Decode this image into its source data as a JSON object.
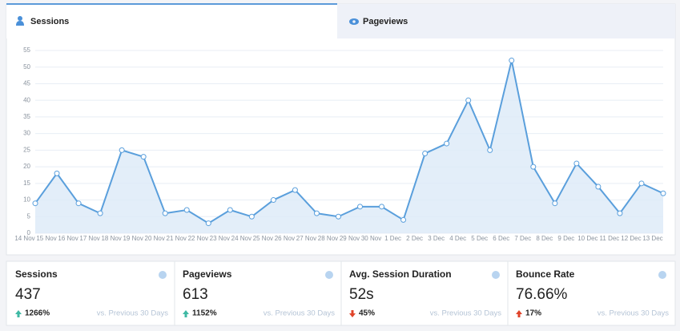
{
  "tabs": [
    "Sessions",
    "Pageviews"
  ],
  "chart_data": {
    "type": "line",
    "categories": [
      "14 Nov",
      "15 Nov",
      "16 Nov",
      "17 Nov",
      "18 Nov",
      "19 Nov",
      "20 Nov",
      "21 Nov",
      "22 Nov",
      "23 Nov",
      "24 Nov",
      "25 Nov",
      "26 Nov",
      "27 Nov",
      "28 Nov",
      "29 Nov",
      "30 Nov",
      "1 Dec",
      "2 Dec",
      "3 Dec",
      "4 Dec",
      "5 Dec",
      "6 Dec",
      "7 Dec",
      "8 Dec",
      "9 Dec",
      "10 Dec",
      "11 Dec",
      "12 Dec",
      "13 Dec"
    ],
    "values": [
      9,
      18,
      9,
      6,
      25,
      23,
      6,
      7,
      3,
      7,
      5,
      10,
      13,
      6,
      5,
      8,
      8,
      4,
      24,
      27,
      40,
      25,
      52,
      20,
      9,
      21,
      14,
      6,
      15,
      12
    ],
    "color": "#5a9fdc",
    "ylim": [
      0,
      55
    ],
    "yticks": [
      0,
      5,
      10,
      15,
      20,
      25,
      30,
      35,
      40,
      45,
      50,
      55
    ],
    "grid": true
  },
  "stats": [
    {
      "title": "Sessions",
      "value": "437",
      "change": "1266%",
      "comparison": "vs. Previous 30 Days"
    },
    {
      "title": "Pageviews",
      "value": "613",
      "change": "1152%",
      "comparison": "vs. Previous 30 Days"
    },
    {
      "title": "Avg. Session Duration",
      "value": "52s",
      "change": "45%",
      "comparison": "vs. Previous 30 Days"
    },
    {
      "title": "Bounce Rate",
      "value": "76.66%",
      "change": "17%",
      "comparison": "vs. Previous 30 Days"
    }
  ]
}
